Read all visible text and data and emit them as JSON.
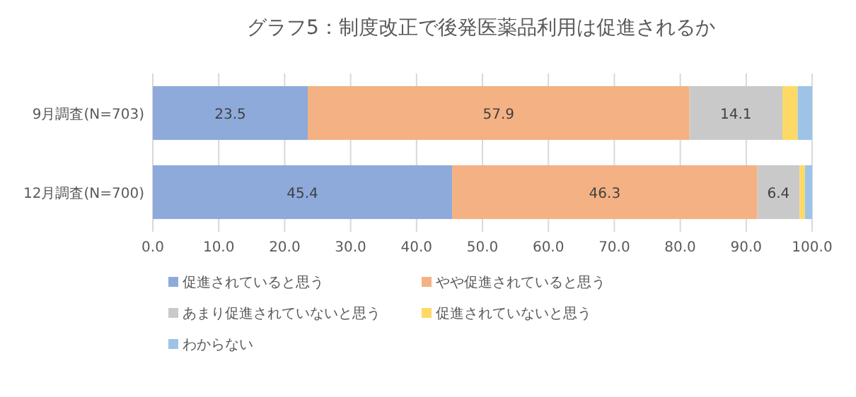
{
  "chart_data": {
    "type": "bar",
    "orientation": "horizontal",
    "stacked": true,
    "title": "グラフ5：制度改正で後発医薬品利用は促進されるか",
    "categories": [
      "9月調査(N=703)",
      "12月調査(N=700)"
    ],
    "series": [
      {
        "name": "促進されていると思う",
        "color": "#8eaadb",
        "values": [
          23.5,
          45.4
        ],
        "value_labels": [
          "23.5",
          "45.4"
        ]
      },
      {
        "name": "やや促進されていると思う",
        "color": "#f4b183",
        "values": [
          57.9,
          46.3
        ],
        "value_labels": [
          "57.9",
          "46.3"
        ]
      },
      {
        "name": "あまり促進されていないと思う",
        "color": "#c9c9c9",
        "values": [
          14.1,
          6.4
        ],
        "value_labels": [
          "14.1",
          "6.4"
        ]
      },
      {
        "name": "促進されていないと思う",
        "color": "#ffd966",
        "values": [
          2.3,
          0.8
        ],
        "value_labels": [
          null,
          null
        ]
      },
      {
        "name": "わからない",
        "color": "#9dc3e6",
        "values": [
          2.2,
          1.1
        ],
        "value_labels": [
          null,
          null
        ]
      }
    ],
    "xlim": [
      0,
      100
    ],
    "xticks": [
      {
        "value": 0,
        "label": "0.0"
      },
      {
        "value": 10,
        "label": "10.0"
      },
      {
        "value": 20,
        "label": "20.0"
      },
      {
        "value": 30,
        "label": "30.0"
      },
      {
        "value": 40,
        "label": "40.0"
      },
      {
        "value": 50,
        "label": "50.0"
      },
      {
        "value": 60,
        "label": "60.0"
      },
      {
        "value": 70,
        "label": "70.0"
      },
      {
        "value": 80,
        "label": "80.0"
      },
      {
        "value": 90,
        "label": "90.0"
      },
      {
        "value": 100,
        "label": "100.0"
      }
    ],
    "grid": "x",
    "legend": "bottom"
  }
}
